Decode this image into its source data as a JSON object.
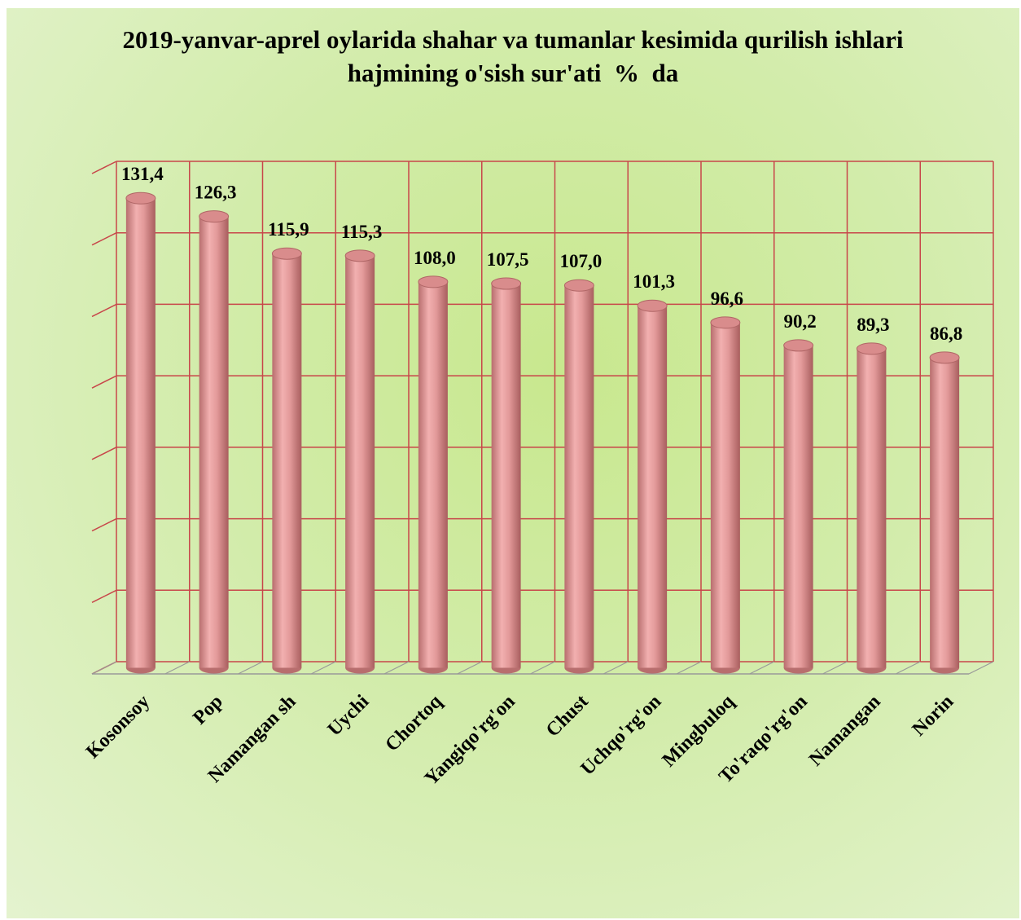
{
  "chart_data": {
    "type": "bar",
    "title": "2019-yanvar-aprel oylarida shahar va tumanlar kesimida qurilish ishlari hajmining o'sish sur'ati  %  da",
    "categories": [
      "Kosonsoy",
      "Pop",
      "Namangan sh",
      "Uychi",
      "Chortoq",
      "Yangiqo'rg'on",
      "Chust",
      "Uchqo'rg'on",
      "Mingbuloq",
      "To'raqo'rg'on",
      "Namangan",
      "Norin"
    ],
    "values": [
      131.4,
      126.3,
      115.9,
      115.3,
      108.0,
      107.5,
      107.0,
      101.3,
      96.6,
      90.2,
      89.3,
      86.8
    ],
    "value_labels": [
      "131,4",
      "126,3",
      "115,9",
      "115,3",
      "108,0",
      "107,5",
      "107,0",
      "101,3",
      "96,6",
      "90,2",
      "89,3",
      "86,8"
    ],
    "color": "#e8a0a0",
    "ylim": [
      0,
      140
    ],
    "yticks": [
      0,
      20,
      40,
      60,
      80,
      100,
      120,
      140
    ],
    "grid": true
  }
}
